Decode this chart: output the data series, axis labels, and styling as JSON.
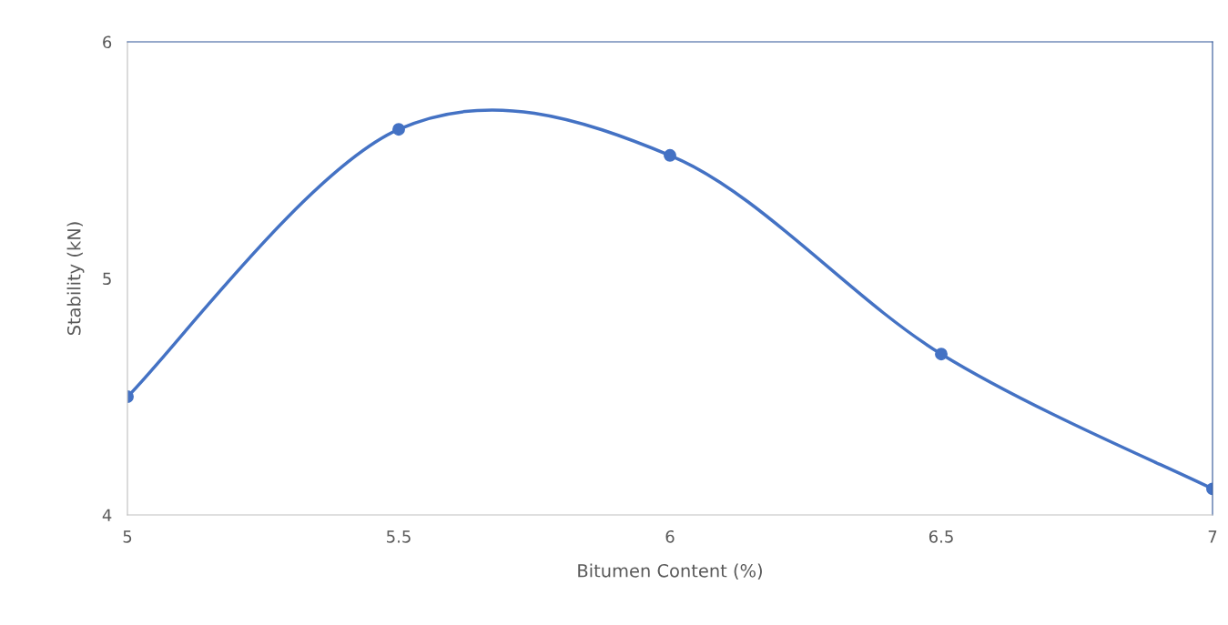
{
  "chart_data": {
    "type": "line",
    "xlabel": "Bitumen Content (%)",
    "ylabel": "Stability (kN)",
    "x": [
      5,
      5.5,
      6,
      6.5,
      7
    ],
    "series": [
      {
        "color": "#4472c4",
        "values": [
          4.5,
          5.63,
          5.52,
          4.68,
          4.11
        ]
      }
    ],
    "xlim": [
      5,
      7
    ],
    "xticks": [
      5,
      5.5,
      6,
      6.5,
      7
    ],
    "ylim": [
      4,
      6
    ],
    "yticks": [
      4,
      5,
      6
    ],
    "grid": false,
    "legend": false,
    "marker": "circle",
    "line_style": "solid"
  }
}
